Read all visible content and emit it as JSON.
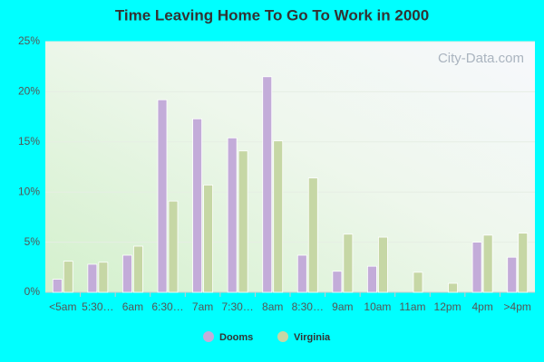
{
  "chart_data": {
    "type": "bar",
    "title": "Time Leaving Home To Go To Work in 2000",
    "watermark": "City-Data.com",
    "categories": [
      "<5am",
      "5:30…",
      "6am",
      "6:30…",
      "7am",
      "7:30…",
      "8am",
      "8:30…",
      "9am",
      "10am",
      "11am",
      "12pm",
      "4pm",
      ">4pm"
    ],
    "series": [
      {
        "name": "Dooms",
        "color": "#c3acd9",
        "values": [
          1.3,
          2.8,
          3.7,
          19.2,
          17.3,
          15.4,
          21.5,
          3.7,
          2.1,
          2.6,
          0,
          0,
          5.0,
          3.5
        ]
      },
      {
        "name": "Virginia",
        "color": "#c6d7a5",
        "values": [
          3.1,
          3.0,
          4.6,
          9.1,
          10.7,
          14.1,
          15.1,
          11.4,
          5.8,
          5.5,
          2.0,
          0.9,
          5.7,
          5.9
        ]
      }
    ],
    "ylim": [
      0,
      25
    ],
    "yticks": [
      {
        "value": 0,
        "label": "0%"
      },
      {
        "value": 5,
        "label": "5%"
      },
      {
        "value": 10,
        "label": "10%"
      },
      {
        "value": 15,
        "label": "15%"
      },
      {
        "value": 20,
        "label": "20%"
      },
      {
        "value": 25,
        "label": "25%"
      }
    ],
    "grid": true
  }
}
